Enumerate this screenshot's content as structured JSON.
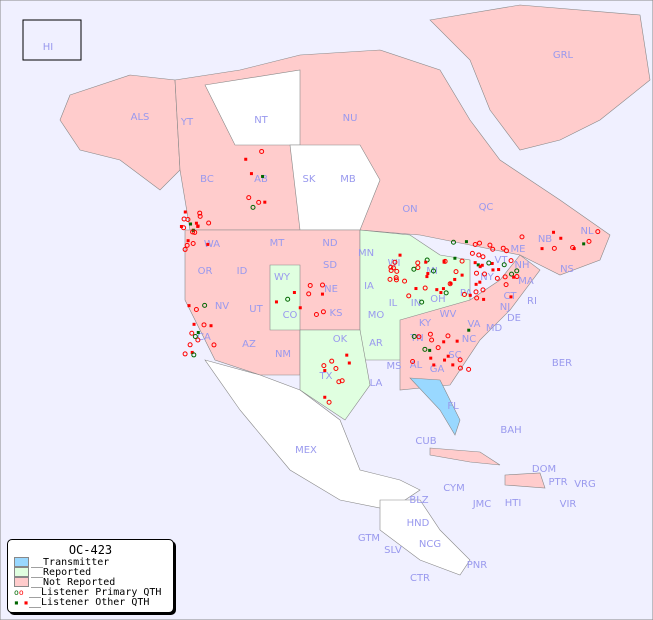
{
  "title": "OC-423",
  "legend": [
    {
      "label": "__Transmitter",
      "color": "#99d8ff"
    },
    {
      "label": "__Reported",
      "color": "#e0ffe0"
    },
    {
      "label": "__Not Reported",
      "color": "#ffcccc"
    },
    {
      "label": "__Listener Primary QTH",
      "icon": "open-circle"
    },
    {
      "label": "__Listener Other QTH",
      "icon": "filled-square"
    }
  ],
  "colors": {
    "background": "#f0f0ff",
    "label": "#9999ee",
    "primary": "#ff0000",
    "reported_marker": "#006600"
  },
  "regions": [
    "HI",
    "ALS",
    "YT",
    "NT",
    "NU",
    "GRL",
    "BC",
    "AB",
    "SK",
    "MB",
    "ON",
    "QC",
    "NL",
    "NS",
    "NB",
    "WA",
    "OR",
    "ID",
    "MT",
    "ND",
    "MN",
    "WI",
    "MI",
    "SD",
    "WY",
    "NE",
    "IA",
    "IL",
    "IN",
    "OH",
    "PA",
    "NY",
    "VT",
    "NH",
    "ME",
    "MA",
    "CT",
    "RI",
    "NJ",
    "DE",
    "MD",
    "NV",
    "UT",
    "CO",
    "KS",
    "MO",
    "KY",
    "WV",
    "VA",
    "CA",
    "AZ",
    "NM",
    "OK",
    "AR",
    "TN",
    "NC",
    "SC",
    "MS",
    "AL",
    "GA",
    "LA",
    "TX",
    "FL",
    "MEX",
    "CUB",
    "BAH",
    "BER",
    "DOM",
    "PTR",
    "VRG",
    "CYM",
    "JMC",
    "HTI",
    "VIR",
    "BLZ",
    "GTM",
    "HND",
    "SLV",
    "NCG",
    "CTR",
    "PNR"
  ]
}
